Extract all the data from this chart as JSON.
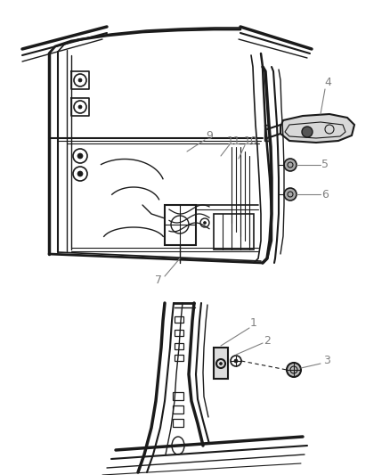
{
  "background_color": "#ffffff",
  "line_color": "#1a1a1a",
  "label_color": "#808080",
  "fig_width": 4.38,
  "fig_height": 5.33,
  "dpi": 100
}
